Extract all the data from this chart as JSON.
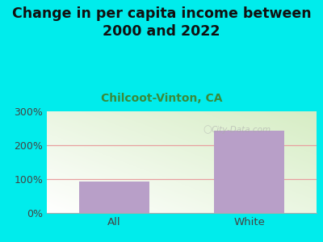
{
  "title": "Change in per capita income between\n2000 and 2022",
  "subtitle": "Chilcoot-Vinton, CA",
  "categories": [
    "All",
    "White"
  ],
  "values": [
    93,
    243
  ],
  "bar_color": "#b89fc8",
  "outer_bg": "#00ecec",
  "plot_bg_left": "#d4edc4",
  "plot_bg_right": "#f8fff8",
  "grid_color": "#e8a0a0",
  "title_color": "#111111",
  "subtitle_color": "#3a8a3a",
  "tick_color": "#444444",
  "ylim": [
    0,
    300
  ],
  "yticks": [
    0,
    100,
    200,
    300
  ],
  "ytick_labels": [
    "0%",
    "100%",
    "200%",
    "300%"
  ],
  "watermark": "City-Data.com",
  "title_fontsize": 12.5,
  "subtitle_fontsize": 10
}
